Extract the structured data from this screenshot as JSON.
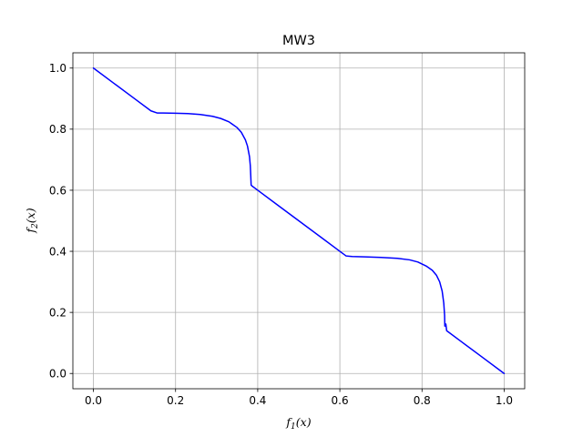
{
  "chart_data": {
    "type": "line",
    "title": "MW3",
    "xlabel": "f",
    "xlabel_sub": "1",
    "xlabel_arg": "(x)",
    "ylabel": "f",
    "ylabel_sub": "2",
    "ylabel_arg": "(x)",
    "xlim": [
      -0.05,
      1.05
    ],
    "ylim": [
      -0.05,
      1.05
    ],
    "xticks": [
      0.0,
      0.2,
      0.4,
      0.6,
      0.8,
      1.0
    ],
    "yticks": [
      0.0,
      0.2,
      0.4,
      0.6,
      0.8,
      1.0
    ],
    "xtick_labels": [
      "0.0",
      "0.2",
      "0.4",
      "0.6",
      "0.8",
      "1.0"
    ],
    "ytick_labels": [
      "0.0",
      "0.2",
      "0.4",
      "0.6",
      "0.8",
      "1.0"
    ],
    "grid": true,
    "series": [
      {
        "color": "#0000ff",
        "x": [
          0.0,
          0.05,
          0.1,
          0.14,
          0.155,
          0.17,
          0.2,
          0.23,
          0.26,
          0.29,
          0.31,
          0.33,
          0.35,
          0.36,
          0.37,
          0.375,
          0.38,
          0.382,
          0.383,
          0.384,
          0.386,
          0.4,
          0.45,
          0.5,
          0.55,
          0.6,
          0.615,
          0.63,
          0.66,
          0.7,
          0.74,
          0.77,
          0.79,
          0.81,
          0.825,
          0.835,
          0.843,
          0.849,
          0.853,
          0.855,
          0.8555,
          0.858,
          0.86,
          0.9,
          0.95,
          1.0
        ],
        "y": [
          1.0,
          0.95,
          0.9,
          0.86,
          0.853,
          0.853,
          0.852,
          0.851,
          0.848,
          0.842,
          0.835,
          0.824,
          0.805,
          0.79,
          0.765,
          0.745,
          0.71,
          0.68,
          0.65,
          0.617,
          0.614,
          0.6,
          0.55,
          0.5,
          0.45,
          0.4,
          0.385,
          0.383,
          0.382,
          0.38,
          0.377,
          0.372,
          0.365,
          0.352,
          0.338,
          0.322,
          0.3,
          0.27,
          0.23,
          0.19,
          0.155,
          0.162,
          0.14,
          0.1,
          0.05,
          0.0
        ]
      }
    ]
  }
}
